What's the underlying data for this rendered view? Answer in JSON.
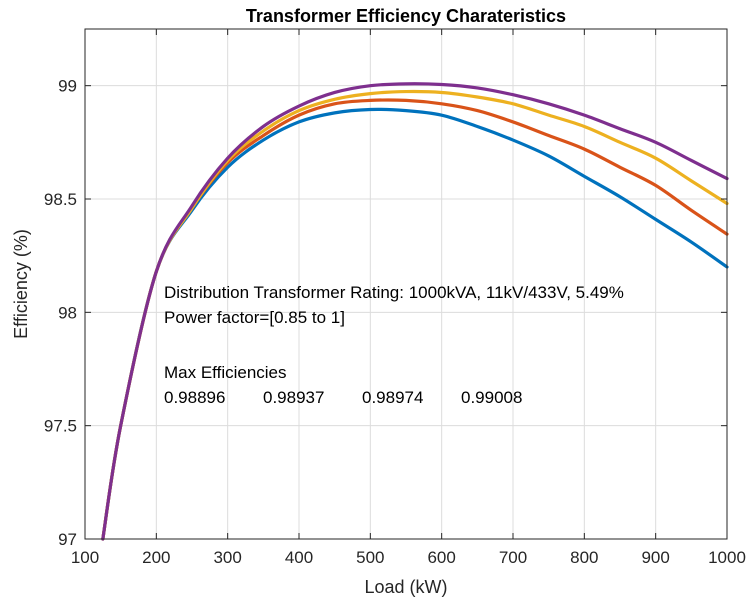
{
  "chart_data": {
    "type": "line",
    "title": "Transformer Efficiency Charateristics",
    "xlabel": "Load (kW)",
    "ylabel": "Efficiency (%)",
    "xlim": [
      100,
      1000
    ],
    "ylim": [
      97,
      99.25
    ],
    "xticks": [
      100,
      200,
      300,
      400,
      500,
      600,
      700,
      800,
      900,
      1000
    ],
    "yticks": [
      97,
      97.5,
      98,
      98.5,
      99
    ],
    "xtick_labels": [
      "100",
      "200",
      "300",
      "400",
      "500",
      "600",
      "700",
      "800",
      "900",
      "1000"
    ],
    "ytick_labels": [
      "97",
      "97.5",
      "98",
      "98.5",
      "99"
    ],
    "grid": true,
    "x": [
      125,
      150,
      200,
      250,
      300,
      350,
      400,
      450,
      500,
      550,
      600,
      650,
      700,
      750,
      800,
      850,
      900,
      950,
      1000
    ],
    "series": [
      {
        "color": "#0072BD",
        "values": [
          97.0,
          97.5,
          98.18,
          98.45,
          98.64,
          98.76,
          98.84,
          98.88,
          98.895,
          98.89,
          98.87,
          98.82,
          98.76,
          98.69,
          98.6,
          98.51,
          98.41,
          98.31,
          98.2
        ]
      },
      {
        "color": "#D95319",
        "values": [
          97.0,
          97.5,
          98.18,
          98.46,
          98.66,
          98.78,
          98.87,
          98.92,
          98.935,
          98.935,
          98.92,
          98.89,
          98.84,
          98.78,
          98.72,
          98.64,
          98.56,
          98.45,
          98.345
        ]
      },
      {
        "color": "#EDB120",
        "values": [
          97.0,
          97.5,
          98.18,
          98.46,
          98.67,
          98.8,
          98.89,
          98.94,
          98.965,
          98.974,
          98.97,
          98.95,
          98.92,
          98.87,
          98.82,
          98.75,
          98.68,
          98.58,
          98.48
        ]
      },
      {
        "color": "#7E2F8E",
        "values": [
          97.0,
          97.5,
          98.18,
          98.47,
          98.68,
          98.82,
          98.91,
          98.97,
          99.0,
          99.008,
          99.005,
          98.99,
          98.96,
          98.92,
          98.87,
          98.81,
          98.75,
          98.67,
          98.59
        ]
      }
    ],
    "annotations": {
      "rating": "Distribution Transformer Rating: 1000kVA, 11kV/433V, 5.49%",
      "power_factor": "Power factor=[0.85 to 1]",
      "max_heading": "Max Efficiencies",
      "max_values": [
        "0.98896",
        "0.98937",
        "0.98974",
        "0.99008"
      ]
    }
  }
}
